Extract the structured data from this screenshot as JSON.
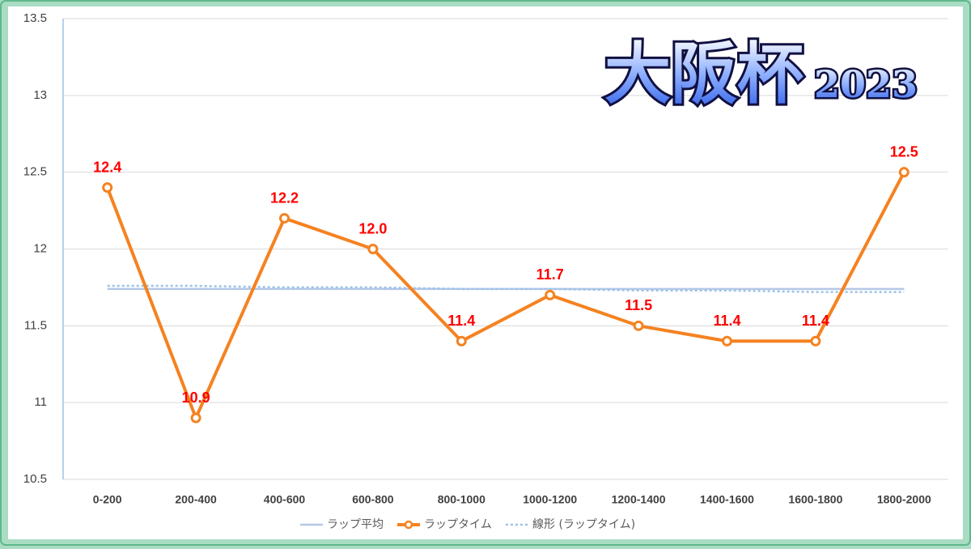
{
  "chart_data": {
    "type": "line",
    "title": "大阪杯",
    "subtitle": "2023",
    "categories": [
      "0-200",
      "200-400",
      "400-600",
      "600-800",
      "800-1000",
      "1000-1200",
      "1200-1400",
      "1400-1600",
      "1600-1800",
      "1800-2000"
    ],
    "series": [
      {
        "name": "ラップ平均",
        "color": "#b4c7e7",
        "style": "solid",
        "values": [
          11.74,
          11.74,
          11.74,
          11.74,
          11.74,
          11.74,
          11.74,
          11.74,
          11.74,
          11.74
        ]
      },
      {
        "name": "ラップタイム",
        "color": "#f58220",
        "style": "solid",
        "markers": true,
        "values": [
          12.4,
          10.9,
          12.2,
          12.0,
          11.4,
          11.7,
          11.5,
          11.4,
          11.4,
          12.5
        ],
        "value_labels": [
          "12.4",
          "10.9",
          "12.2",
          "12.0",
          "11.4",
          "11.7",
          "11.5",
          "11.4",
          "11.4",
          "12.5"
        ],
        "label_color": "#ff0000"
      },
      {
        "name": "線形 (ラップタイム)",
        "color": "#9dc3e6",
        "style": "dotted",
        "values": [
          11.76,
          11.76,
          11.75,
          11.75,
          11.74,
          11.74,
          11.73,
          11.73,
          11.72,
          11.72
        ]
      }
    ],
    "ylim": [
      10.5,
      13.5
    ],
    "yticks": [
      10.5,
      11,
      11.5,
      12,
      12.5,
      13,
      13.5
    ],
    "grid": true,
    "legend": "bottom"
  }
}
